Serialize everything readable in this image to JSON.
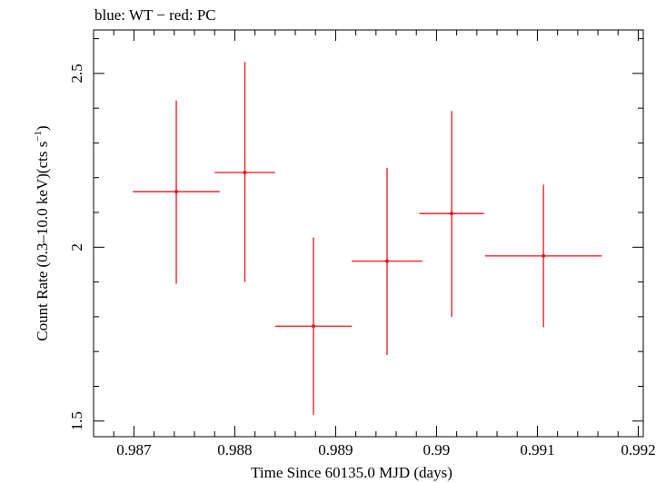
{
  "chart_data": {
    "type": "scatter",
    "title": "blue: WT − red: PC",
    "xlabel": "Time Since 60135.0 MJD (days)",
    "ylabel_parts": {
      "prefix": "Count Rate (0.3–10.0 keV)(cts s",
      "superscript": "−1",
      "suffix": ")"
    },
    "xlim": [
      0.9866,
      0.99205
    ],
    "ylim": [
      1.455,
      2.625
    ],
    "x_ticks": [
      0.987,
      0.988,
      0.989,
      0.99,
      0.991,
      0.992
    ],
    "x_tick_labels": [
      "0.987",
      "0.988",
      "0.989",
      "0.99",
      "0.991",
      "0.992"
    ],
    "y_ticks": [
      1.5,
      2.0,
      2.5
    ],
    "y_tick_labels": [
      "1.5",
      "2",
      "2.5"
    ],
    "grid": false,
    "series": [
      {
        "color": "#e8141b",
        "points": [
          {
            "x": 0.98742,
            "xerr": 0.00043,
            "y": 2.16,
            "yerr_low": 0.265,
            "yerr_high": 0.262
          },
          {
            "x": 0.9881,
            "xerr": 0.0003,
            "y": 2.215,
            "yerr_low": 0.315,
            "yerr_high": 0.318
          },
          {
            "x": 0.98878,
            "xerr": 0.00038,
            "y": 1.773,
            "yerr_low": 0.255,
            "yerr_high": 0.255
          },
          {
            "x": 0.98951,
            "xerr": 0.00035,
            "y": 1.96,
            "yerr_low": 0.27,
            "yerr_high": 0.268
          },
          {
            "x": 0.99015,
            "xerr": 0.00032,
            "y": 2.097,
            "yerr_low": 0.297,
            "yerr_high": 0.295
          },
          {
            "x": 0.99106,
            "xerr": 0.00058,
            "y": 1.975,
            "yerr_low": 0.205,
            "yerr_high": 0.205
          }
        ]
      }
    ]
  }
}
